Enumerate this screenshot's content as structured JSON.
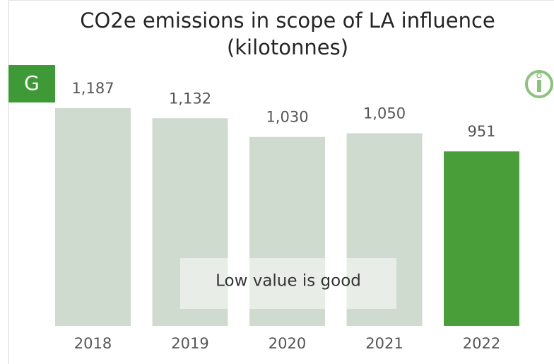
{
  "chart_data": {
    "type": "bar",
    "title": "CO2e emissions in scope of LA influence (kilotonnes)",
    "badge": "G",
    "annotation": "Low value is good",
    "categories": [
      "2018",
      "2019",
      "2020",
      "2021",
      "2022"
    ],
    "values": [
      1187,
      1132,
      1030,
      1050,
      951
    ],
    "value_labels": [
      "1,187",
      "1,132",
      "1,030",
      "1,050",
      "951"
    ],
    "colors": [
      "#d0dbd0",
      "#d0dbd0",
      "#d0dbd0",
      "#d0dbd0",
      "#4a9e3a"
    ]
  }
}
